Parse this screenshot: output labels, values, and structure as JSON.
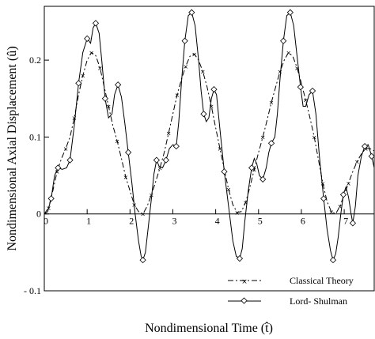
{
  "chart_data": {
    "type": "line",
    "title": "",
    "xlabel": "Nondimensional Time (t̂)",
    "ylabel": "Nondimensional Axial Displacement (û)",
    "xlim": [
      0,
      7.7
    ],
    "ylim": [
      -0.1,
      0.27
    ],
    "x_ticks": [
      {
        "value": 0,
        "label": "0"
      },
      {
        "value": 1,
        "label": "1"
      },
      {
        "value": 2,
        "label": "2"
      },
      {
        "value": 3,
        "label": "3"
      },
      {
        "value": 4,
        "label": "4"
      },
      {
        "value": 5,
        "label": "5"
      },
      {
        "value": 6,
        "label": "6"
      },
      {
        "value": 7,
        "label": "7"
      }
    ],
    "y_ticks": [
      {
        "value": -0.1,
        "label": "- 0.1"
      },
      {
        "value": 0,
        "label": "0"
      },
      {
        "value": 0.1,
        "label": "0.1"
      },
      {
        "value": 0.2,
        "label": "0.2"
      }
    ],
    "grid": false,
    "legend_position": "bottom-right",
    "series": [
      {
        "name": "Classical Theory",
        "style": "dash-dot",
        "marker": "x",
        "color": "#000000",
        "points": [
          [
            0,
            0
          ],
          [
            0.1,
            0.008
          ],
          [
            0.2,
            0.03
          ],
          [
            0.3,
            0.055
          ],
          [
            0.4,
            0.072
          ],
          [
            0.5,
            0.085
          ],
          [
            0.6,
            0.1
          ],
          [
            0.7,
            0.125
          ],
          [
            0.8,
            0.155
          ],
          [
            0.9,
            0.18
          ],
          [
            1.0,
            0.2
          ],
          [
            1.1,
            0.21
          ],
          [
            1.2,
            0.206
          ],
          [
            1.3,
            0.19
          ],
          [
            1.4,
            0.165
          ],
          [
            1.5,
            0.14
          ],
          [
            1.6,
            0.115
          ],
          [
            1.7,
            0.095
          ],
          [
            1.8,
            0.072
          ],
          [
            1.9,
            0.048
          ],
          [
            2.0,
            0.03
          ],
          [
            2.1,
            0.012
          ],
          [
            2.2,
            0.003
          ],
          [
            2.3,
            0.0
          ],
          [
            2.4,
            0.01
          ],
          [
            2.5,
            0.025
          ],
          [
            2.6,
            0.042
          ],
          [
            2.7,
            0.06
          ],
          [
            2.8,
            0.08
          ],
          [
            2.9,
            0.105
          ],
          [
            3.0,
            0.13
          ],
          [
            3.1,
            0.155
          ],
          [
            3.2,
            0.175
          ],
          [
            3.3,
            0.192
          ],
          [
            3.4,
            0.205
          ],
          [
            3.5,
            0.208
          ],
          [
            3.6,
            0.2
          ],
          [
            3.7,
            0.185
          ],
          [
            3.8,
            0.165
          ],
          [
            3.9,
            0.14
          ],
          [
            4.0,
            0.112
          ],
          [
            4.1,
            0.085
          ],
          [
            4.2,
            0.058
          ],
          [
            4.3,
            0.032
          ],
          [
            4.4,
            0.012
          ],
          [
            4.5,
            0.002
          ],
          [
            4.6,
            0.003
          ],
          [
            4.7,
            0.015
          ],
          [
            4.8,
            0.035
          ],
          [
            4.9,
            0.058
          ],
          [
            5.0,
            0.08
          ],
          [
            5.1,
            0.1
          ],
          [
            5.2,
            0.122
          ],
          [
            5.3,
            0.145
          ],
          [
            5.4,
            0.165
          ],
          [
            5.5,
            0.185
          ],
          [
            5.6,
            0.2
          ],
          [
            5.7,
            0.21
          ],
          [
            5.8,
            0.205
          ],
          [
            5.9,
            0.19
          ],
          [
            6.0,
            0.17
          ],
          [
            6.1,
            0.148
          ],
          [
            6.2,
            0.125
          ],
          [
            6.3,
            0.1
          ],
          [
            6.4,
            0.07
          ],
          [
            6.5,
            0.04
          ],
          [
            6.6,
            0.016
          ],
          [
            6.7,
            0.003
          ],
          [
            6.8,
            0.0
          ],
          [
            6.9,
            0.01
          ],
          [
            7.0,
            0.025
          ],
          [
            7.1,
            0.04
          ],
          [
            7.2,
            0.055
          ],
          [
            7.3,
            0.068
          ],
          [
            7.4,
            0.078
          ],
          [
            7.5,
            0.085
          ],
          [
            7.6,
            0.085
          ],
          [
            7.7,
            0.082
          ]
        ],
        "marker_points": [
          [
            0.1,
            0.008
          ],
          [
            0.3,
            0.055
          ],
          [
            0.5,
            0.085
          ],
          [
            0.7,
            0.125
          ],
          [
            0.9,
            0.18
          ],
          [
            1.1,
            0.21
          ],
          [
            1.3,
            0.19
          ],
          [
            1.5,
            0.14
          ],
          [
            1.7,
            0.095
          ],
          [
            1.9,
            0.048
          ],
          [
            2.1,
            0.012
          ],
          [
            2.3,
            0.0
          ],
          [
            2.5,
            0.025
          ],
          [
            2.7,
            0.06
          ],
          [
            2.9,
            0.105
          ],
          [
            3.1,
            0.155
          ],
          [
            3.3,
            0.192
          ],
          [
            3.5,
            0.208
          ],
          [
            3.7,
            0.185
          ],
          [
            3.9,
            0.14
          ],
          [
            4.1,
            0.085
          ],
          [
            4.3,
            0.032
          ],
          [
            4.5,
            0.002
          ],
          [
            4.7,
            0.015
          ],
          [
            4.9,
            0.058
          ],
          [
            5.1,
            0.1
          ],
          [
            5.3,
            0.145
          ],
          [
            5.5,
            0.185
          ],
          [
            5.7,
            0.21
          ],
          [
            5.9,
            0.19
          ],
          [
            6.1,
            0.148
          ],
          [
            6.3,
            0.1
          ],
          [
            6.5,
            0.04
          ],
          [
            6.7,
            0.003
          ],
          [
            6.9,
            0.01
          ],
          [
            7.1,
            0.04
          ],
          [
            7.3,
            0.068
          ],
          [
            7.5,
            0.085
          ]
        ]
      },
      {
        "name": "Lord- Shulman",
        "style": "solid",
        "marker": "diamond",
        "color": "#000000",
        "points": [
          [
            0,
            0
          ],
          [
            0.08,
            0.003
          ],
          [
            0.16,
            0.02
          ],
          [
            0.24,
            0.05
          ],
          [
            0.32,
            0.06
          ],
          [
            0.42,
            0.058
          ],
          [
            0.52,
            0.06
          ],
          [
            0.6,
            0.07
          ],
          [
            0.7,
            0.115
          ],
          [
            0.8,
            0.17
          ],
          [
            0.9,
            0.21
          ],
          [
            1.0,
            0.228
          ],
          [
            1.08,
            0.222
          ],
          [
            1.14,
            0.242
          ],
          [
            1.2,
            0.248
          ],
          [
            1.28,
            0.235
          ],
          [
            1.34,
            0.2
          ],
          [
            1.42,
            0.15
          ],
          [
            1.5,
            0.125
          ],
          [
            1.58,
            0.13
          ],
          [
            1.64,
            0.155
          ],
          [
            1.72,
            0.168
          ],
          [
            1.8,
            0.152
          ],
          [
            1.88,
            0.118
          ],
          [
            1.96,
            0.08
          ],
          [
            2.04,
            0.042
          ],
          [
            2.12,
            0.0
          ],
          [
            2.2,
            -0.035
          ],
          [
            2.26,
            -0.055
          ],
          [
            2.3,
            -0.06
          ],
          [
            2.36,
            -0.05
          ],
          [
            2.42,
            -0.02
          ],
          [
            2.5,
            0.02
          ],
          [
            2.56,
            0.052
          ],
          [
            2.62,
            0.07
          ],
          [
            2.68,
            0.062
          ],
          [
            2.76,
            0.06
          ],
          [
            2.84,
            0.07
          ],
          [
            2.92,
            0.085
          ],
          [
            3.0,
            0.09
          ],
          [
            3.08,
            0.088
          ],
          [
            3.14,
            0.12
          ],
          [
            3.2,
            0.17
          ],
          [
            3.28,
            0.225
          ],
          [
            3.36,
            0.258
          ],
          [
            3.44,
            0.262
          ],
          [
            3.52,
            0.245
          ],
          [
            3.6,
            0.2
          ],
          [
            3.66,
            0.16
          ],
          [
            3.72,
            0.13
          ],
          [
            3.78,
            0.12
          ],
          [
            3.84,
            0.125
          ],
          [
            3.9,
            0.15
          ],
          [
            3.96,
            0.162
          ],
          [
            4.02,
            0.155
          ],
          [
            4.1,
            0.11
          ],
          [
            4.2,
            0.055
          ],
          [
            4.3,
            0.01
          ],
          [
            4.4,
            -0.035
          ],
          [
            4.48,
            -0.055
          ],
          [
            4.56,
            -0.058
          ],
          [
            4.62,
            -0.045
          ],
          [
            4.68,
            -0.01
          ],
          [
            4.76,
            0.03
          ],
          [
            4.84,
            0.06
          ],
          [
            4.9,
            0.072
          ],
          [
            4.96,
            0.065
          ],
          [
            5.02,
            0.05
          ],
          [
            5.1,
            0.045
          ],
          [
            5.18,
            0.06
          ],
          [
            5.24,
            0.08
          ],
          [
            5.3,
            0.092
          ],
          [
            5.38,
            0.1
          ],
          [
            5.44,
            0.13
          ],
          [
            5.5,
            0.175
          ],
          [
            5.58,
            0.225
          ],
          [
            5.66,
            0.258
          ],
          [
            5.74,
            0.262
          ],
          [
            5.82,
            0.245
          ],
          [
            5.9,
            0.205
          ],
          [
            5.98,
            0.165
          ],
          [
            6.04,
            0.14
          ],
          [
            6.1,
            0.14
          ],
          [
            6.18,
            0.155
          ],
          [
            6.26,
            0.16
          ],
          [
            6.34,
            0.13
          ],
          [
            6.42,
            0.075
          ],
          [
            6.52,
            0.02
          ],
          [
            6.6,
            -0.02
          ],
          [
            6.68,
            -0.048
          ],
          [
            6.74,
            -0.06
          ],
          [
            6.8,
            -0.052
          ],
          [
            6.86,
            -0.03
          ],
          [
            6.92,
            0.0
          ],
          [
            6.98,
            0.025
          ],
          [
            7.04,
            0.035
          ],
          [
            7.1,
            0.022
          ],
          [
            7.16,
            0.0
          ],
          [
            7.2,
            -0.012
          ],
          [
            7.26,
            0.01
          ],
          [
            7.32,
            0.05
          ],
          [
            7.4,
            0.075
          ],
          [
            7.48,
            0.088
          ],
          [
            7.56,
            0.09
          ],
          [
            7.64,
            0.075
          ],
          [
            7.7,
            0.06
          ]
        ],
        "marker_points": [
          [
            0.16,
            0.02
          ],
          [
            0.32,
            0.06
          ],
          [
            0.6,
            0.07
          ],
          [
            0.8,
            0.17
          ],
          [
            1.0,
            0.228
          ],
          [
            1.2,
            0.248
          ],
          [
            1.42,
            0.15
          ],
          [
            1.72,
            0.168
          ],
          [
            1.96,
            0.08
          ],
          [
            2.3,
            -0.06
          ],
          [
            2.62,
            0.07
          ],
          [
            2.84,
            0.07
          ],
          [
            3.08,
            0.088
          ],
          [
            3.28,
            0.225
          ],
          [
            3.44,
            0.262
          ],
          [
            3.72,
            0.13
          ],
          [
            3.96,
            0.162
          ],
          [
            4.2,
            0.055
          ],
          [
            4.56,
            -0.058
          ],
          [
            4.84,
            0.06
          ],
          [
            5.1,
            0.045
          ],
          [
            5.3,
            0.092
          ],
          [
            5.58,
            0.225
          ],
          [
            5.74,
            0.262
          ],
          [
            5.98,
            0.165
          ],
          [
            6.26,
            0.16
          ],
          [
            6.52,
            0.02
          ],
          [
            6.74,
            -0.06
          ],
          [
            6.98,
            0.025
          ],
          [
            7.2,
            -0.012
          ],
          [
            7.48,
            0.088
          ],
          [
            7.64,
            0.075
          ]
        ]
      }
    ]
  }
}
